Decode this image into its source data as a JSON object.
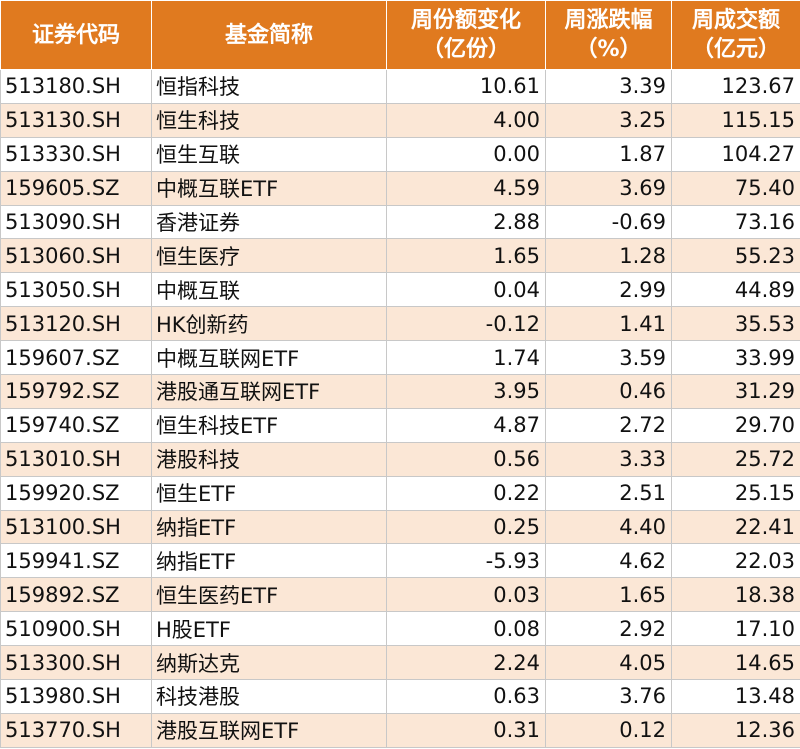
{
  "header": {
    "code": [
      "证券代码"
    ],
    "name": [
      "基金简称"
    ],
    "share_change": [
      "周份额变化",
      "（亿份）"
    ],
    "price_change": [
      "周涨跌幅",
      "（%）"
    ],
    "turnover": [
      "周成交额",
      "（亿元）"
    ]
  },
  "rows": [
    {
      "code": "513180.SH",
      "name": "恒指科技",
      "share_change": "10.61",
      "price_change": "3.39",
      "turnover": "123.67"
    },
    {
      "code": "513130.SH",
      "name": "恒生科技",
      "share_change": "4.00",
      "price_change": "3.25",
      "turnover": "115.15"
    },
    {
      "code": "513330.SH",
      "name": "恒生互联",
      "share_change": "0.00",
      "price_change": "1.87",
      "turnover": "104.27"
    },
    {
      "code": "159605.SZ",
      "name": "中概互联ETF",
      "share_change": "4.59",
      "price_change": "3.69",
      "turnover": "75.40"
    },
    {
      "code": "513090.SH",
      "name": "香港证券",
      "share_change": "2.88",
      "price_change": "-0.69",
      "turnover": "73.16"
    },
    {
      "code": "513060.SH",
      "name": "恒生医疗",
      "share_change": "1.65",
      "price_change": "1.28",
      "turnover": "55.23"
    },
    {
      "code": "513050.SH",
      "name": "中概互联",
      "share_change": "0.04",
      "price_change": "2.99",
      "turnover": "44.89"
    },
    {
      "code": "513120.SH",
      "name": "HK创新药",
      "share_change": "-0.12",
      "price_change": "1.41",
      "turnover": "35.53"
    },
    {
      "code": "159607.SZ",
      "name": "中概互联网ETF",
      "share_change": "1.74",
      "price_change": "3.59",
      "turnover": "33.99"
    },
    {
      "code": "159792.SZ",
      "name": "港股通互联网ETF",
      "share_change": "3.95",
      "price_change": "0.46",
      "turnover": "31.29"
    },
    {
      "code": "159740.SZ",
      "name": "恒生科技ETF",
      "share_change": "4.87",
      "price_change": "2.72",
      "turnover": "29.70"
    },
    {
      "code": "513010.SH",
      "name": "港股科技",
      "share_change": "0.56",
      "price_change": "3.33",
      "turnover": "25.72"
    },
    {
      "code": "159920.SZ",
      "name": "恒生ETF",
      "share_change": "0.22",
      "price_change": "2.51",
      "turnover": "25.15"
    },
    {
      "code": "513100.SH",
      "name": "纳指ETF",
      "share_change": "0.25",
      "price_change": "4.40",
      "turnover": "22.41"
    },
    {
      "code": "159941.SZ",
      "name": "纳指ETF",
      "share_change": "-5.93",
      "price_change": "4.62",
      "turnover": "22.03"
    },
    {
      "code": "159892.SZ",
      "name": "恒生医药ETF",
      "share_change": "0.03",
      "price_change": "1.65",
      "turnover": "18.38"
    },
    {
      "code": "510900.SH",
      "name": "H股ETF",
      "share_change": "0.08",
      "price_change": "2.92",
      "turnover": "17.10"
    },
    {
      "code": "513300.SH",
      "name": "纳斯达克",
      "share_change": "2.24",
      "price_change": "4.05",
      "turnover": "14.65"
    },
    {
      "code": "513980.SH",
      "name": "科技港股",
      "share_change": "0.63",
      "price_change": "3.76",
      "turnover": "13.48"
    },
    {
      "code": "513770.SH",
      "name": "港股互联网ETF",
      "share_change": "0.31",
      "price_change": "0.12",
      "turnover": "12.36"
    }
  ],
  "colors": {
    "header_bg": "#e07a1f",
    "header_text": "#ffffff",
    "stripe_bg": "#fbe7d6",
    "cell_text": "#111111"
  }
}
